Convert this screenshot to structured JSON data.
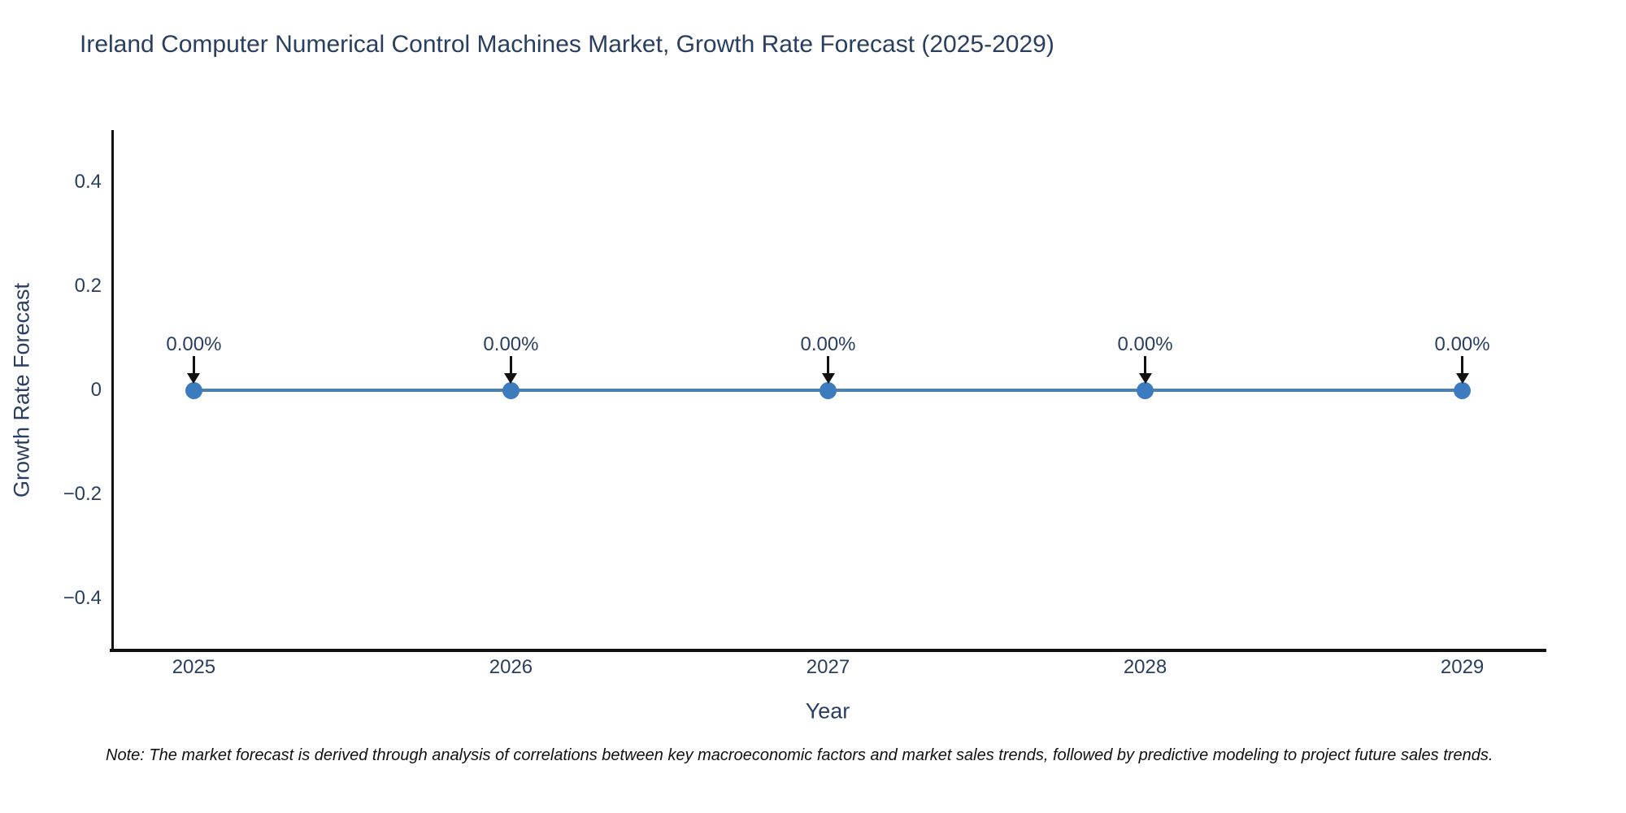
{
  "title": "Ireland Computer Numerical Control Machines Market, Growth Rate Forecast (2025-2029)",
  "note": "Note: The market forecast is derived through analysis of correlations between key macroeconomic factors and market sales trends, followed by predictive modeling to project future sales trends.",
  "chart_data": {
    "type": "line",
    "title": "Ireland Computer Numerical Control Machines Market, Growth Rate Forecast (2025-2029)",
    "xlabel": "Year",
    "ylabel": "Growth Rate Forecast",
    "x": [
      2025,
      2026,
      2027,
      2028,
      2029
    ],
    "values": [
      0,
      0,
      0,
      0,
      0
    ],
    "point_labels": [
      "0.00%",
      "0.00%",
      "0.00%",
      "0.00%",
      "0.00%"
    ],
    "xtick_labels": [
      "2025",
      "2026",
      "2027",
      "2028",
      "2029"
    ],
    "yticks": [
      0.4,
      0.2,
      0,
      -0.2,
      -0.4
    ],
    "ytick_labels": [
      "0.4",
      "0.2",
      "0",
      "−0.2",
      "−0.4"
    ],
    "xlim": [
      2024.74,
      2029.26
    ],
    "ylim": [
      -0.5,
      0.5
    ],
    "grid": false,
    "legend": "none",
    "colors": {
      "line": "#4d80ad",
      "marker": "#3d7bbf",
      "text": "#2a3f5f",
      "axis": "#111111",
      "arrow": "#111111"
    }
  }
}
